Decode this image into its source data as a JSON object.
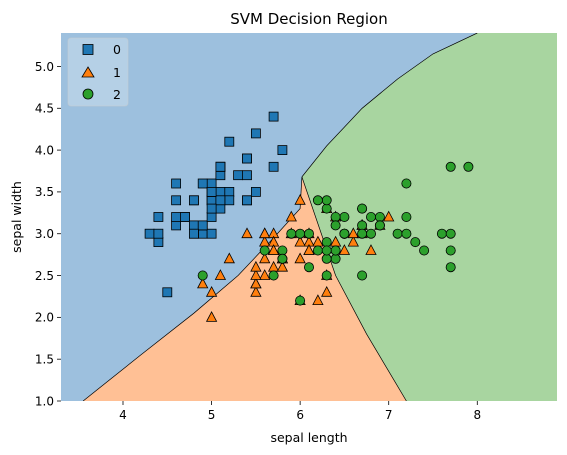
{
  "chart_data": {
    "type": "scatter",
    "title": "SVM Decision Region",
    "xlabel": "sepal length",
    "ylabel": "sepal width",
    "xlim": [
      3.3,
      8.9
    ],
    "ylim": [
      1.0,
      5.4
    ],
    "xticks": [
      4,
      5,
      6,
      7,
      8
    ],
    "yticks": [
      1.0,
      1.5,
      2.0,
      2.5,
      3.0,
      3.5,
      4.0,
      4.5,
      5.0
    ],
    "xtick_labels": [
      "4",
      "5",
      "6",
      "7",
      "8"
    ],
    "ytick_labels": [
      "1.0",
      "1.5",
      "2.0",
      "2.5",
      "3.0",
      "3.5",
      "4.0",
      "4.5",
      "5.0"
    ],
    "grid": false,
    "legend_position": "top-left",
    "regions": [
      {
        "class": "0",
        "color": "#9dc0de"
      },
      {
        "class": "1",
        "color": "#ffc095"
      },
      {
        "class": "2",
        "color": "#a8d5a0"
      }
    ],
    "boundaries": {
      "class0_class1": [
        [
          3.55,
          1.0
        ],
        [
          4.2,
          1.55
        ],
        [
          4.8,
          2.05
        ],
        [
          5.3,
          2.5
        ],
        [
          5.7,
          2.95
        ],
        [
          6.0,
          3.3
        ],
        [
          6.02,
          3.68
        ]
      ],
      "class0_class2": [
        [
          6.02,
          3.68
        ],
        [
          6.3,
          4.05
        ],
        [
          6.7,
          4.5
        ],
        [
          7.1,
          4.85
        ],
        [
          7.5,
          5.15
        ],
        [
          8.0,
          5.4
        ]
      ],
      "class1_class2": [
        [
          6.02,
          3.68
        ],
        [
          6.4,
          2.5
        ],
        [
          6.75,
          1.8
        ],
        [
          7.2,
          1.0
        ]
      ]
    },
    "series": [
      {
        "name": "0",
        "marker": "square",
        "color": "#1f77b4",
        "points": [
          [
            5.1,
            3.5
          ],
          [
            4.9,
            3.0
          ],
          [
            4.7,
            3.2
          ],
          [
            4.6,
            3.1
          ],
          [
            5.0,
            3.6
          ],
          [
            5.4,
            3.9
          ],
          [
            4.6,
            3.4
          ],
          [
            5.0,
            3.4
          ],
          [
            4.4,
            2.9
          ],
          [
            4.9,
            3.1
          ],
          [
            5.4,
            3.7
          ],
          [
            4.8,
            3.4
          ],
          [
            4.8,
            3.0
          ],
          [
            4.3,
            3.0
          ],
          [
            5.8,
            4.0
          ],
          [
            5.7,
            4.4
          ],
          [
            5.4,
            3.9
          ],
          [
            5.1,
            3.5
          ],
          [
            5.7,
            3.8
          ],
          [
            5.1,
            3.8
          ],
          [
            5.4,
            3.4
          ],
          [
            5.1,
            3.7
          ],
          [
            4.6,
            3.6
          ],
          [
            5.1,
            3.3
          ],
          [
            4.8,
            3.4
          ],
          [
            5.0,
            3.0
          ],
          [
            5.0,
            3.4
          ],
          [
            5.2,
            3.5
          ],
          [
            5.2,
            3.4
          ],
          [
            4.7,
            3.2
          ],
          [
            4.8,
            3.1
          ],
          [
            5.4,
            3.4
          ],
          [
            5.2,
            4.1
          ],
          [
            5.5,
            4.2
          ],
          [
            4.9,
            3.1
          ],
          [
            5.0,
            3.2
          ],
          [
            5.5,
            3.5
          ],
          [
            4.9,
            3.6
          ],
          [
            4.4,
            3.0
          ],
          [
            5.1,
            3.4
          ],
          [
            5.0,
            3.5
          ],
          [
            4.5,
            2.3
          ],
          [
            4.4,
            3.2
          ],
          [
            5.0,
            3.5
          ],
          [
            5.1,
            3.8
          ],
          [
            4.8,
            3.0
          ],
          [
            5.1,
            3.8
          ],
          [
            4.6,
            3.2
          ],
          [
            5.3,
            3.7
          ],
          [
            5.0,
            3.3
          ]
        ]
      },
      {
        "name": "1",
        "marker": "triangle",
        "color": "#ff7f0e",
        "points": [
          [
            7.0,
            3.2
          ],
          [
            6.4,
            3.2
          ],
          [
            6.9,
            3.1
          ],
          [
            5.5,
            2.3
          ],
          [
            6.5,
            2.8
          ],
          [
            5.7,
            2.8
          ],
          [
            6.3,
            3.3
          ],
          [
            4.9,
            2.4
          ],
          [
            6.6,
            2.9
          ],
          [
            5.2,
            2.7
          ],
          [
            5.0,
            2.0
          ],
          [
            5.9,
            3.0
          ],
          [
            6.0,
            2.2
          ],
          [
            6.1,
            2.9
          ],
          [
            5.6,
            2.9
          ],
          [
            6.7,
            3.1
          ],
          [
            5.6,
            3.0
          ],
          [
            5.8,
            2.7
          ],
          [
            6.2,
            2.2
          ],
          [
            5.6,
            2.5
          ],
          [
            5.9,
            3.2
          ],
          [
            6.1,
            2.8
          ],
          [
            6.3,
            2.5
          ],
          [
            6.1,
            2.8
          ],
          [
            6.4,
            2.9
          ],
          [
            6.6,
            3.0
          ],
          [
            6.8,
            2.8
          ],
          [
            6.7,
            3.0
          ],
          [
            6.0,
            2.9
          ],
          [
            5.7,
            2.6
          ],
          [
            5.5,
            2.4
          ],
          [
            5.5,
            2.4
          ],
          [
            5.8,
            2.7
          ],
          [
            6.0,
            2.7
          ],
          [
            5.4,
            3.0
          ],
          [
            6.0,
            3.4
          ],
          [
            6.7,
            3.1
          ],
          [
            6.3,
            2.3
          ],
          [
            5.6,
            3.0
          ],
          [
            5.5,
            2.5
          ],
          [
            5.5,
            2.6
          ],
          [
            6.1,
            3.0
          ],
          [
            5.8,
            2.6
          ],
          [
            5.0,
            2.3
          ],
          [
            5.6,
            2.7
          ],
          [
            5.7,
            3.0
          ],
          [
            5.7,
            2.9
          ],
          [
            6.2,
            2.9
          ],
          [
            5.1,
            2.5
          ],
          [
            5.7,
            2.8
          ]
        ]
      },
      {
        "name": "2",
        "marker": "circle",
        "color": "#2ca02c",
        "points": [
          [
            6.3,
            3.3
          ],
          [
            5.8,
            2.7
          ],
          [
            7.1,
            3.0
          ],
          [
            6.3,
            2.9
          ],
          [
            6.5,
            3.0
          ],
          [
            7.6,
            3.0
          ],
          [
            4.9,
            2.5
          ],
          [
            7.3,
            2.9
          ],
          [
            6.7,
            2.5
          ],
          [
            7.2,
            3.6
          ],
          [
            6.5,
            3.2
          ],
          [
            6.4,
            2.7
          ],
          [
            6.8,
            3.0
          ],
          [
            5.7,
            2.5
          ],
          [
            5.8,
            2.8
          ],
          [
            6.4,
            3.2
          ],
          [
            6.5,
            3.0
          ],
          [
            7.7,
            3.8
          ],
          [
            7.7,
            2.6
          ],
          [
            6.0,
            2.2
          ],
          [
            6.9,
            3.2
          ],
          [
            5.6,
            2.8
          ],
          [
            7.7,
            2.8
          ],
          [
            6.3,
            2.7
          ],
          [
            6.7,
            3.3
          ],
          [
            7.2,
            3.2
          ],
          [
            6.2,
            2.8
          ],
          [
            6.1,
            3.0
          ],
          [
            6.4,
            2.8
          ],
          [
            7.2,
            3.0
          ],
          [
            7.4,
            2.8
          ],
          [
            7.9,
            3.8
          ],
          [
            6.4,
            2.8
          ],
          [
            6.3,
            2.8
          ],
          [
            6.1,
            2.6
          ],
          [
            7.7,
            3.0
          ],
          [
            6.3,
            3.4
          ],
          [
            6.4,
            3.1
          ],
          [
            6.0,
            3.0
          ],
          [
            6.9,
            3.1
          ],
          [
            6.7,
            3.1
          ],
          [
            6.9,
            3.1
          ],
          [
            5.8,
            2.7
          ],
          [
            6.8,
            3.2
          ],
          [
            6.7,
            3.3
          ],
          [
            6.7,
            3.0
          ],
          [
            6.3,
            2.5
          ],
          [
            6.5,
            3.0
          ],
          [
            6.2,
            3.4
          ],
          [
            5.9,
            3.0
          ]
        ]
      }
    ]
  }
}
